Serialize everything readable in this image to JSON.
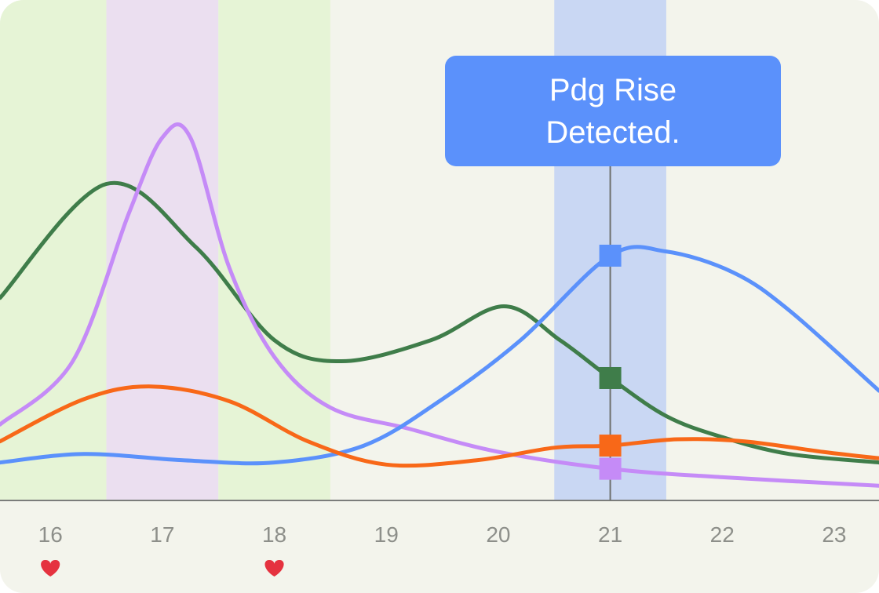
{
  "chart_data": {
    "type": "line",
    "x": [
      16,
      17,
      18,
      19,
      20,
      21,
      22,
      23
    ],
    "xlim": [
      15.55,
      23.4
    ],
    "ylim": [
      0,
      100
    ],
    "title": "",
    "xlabel": "",
    "ylabel": "",
    "grid": false,
    "legend": "none",
    "tick_labels": [
      "16",
      "17",
      "18",
      "19",
      "20",
      "21",
      "22",
      "23"
    ],
    "heart_markers": [
      16,
      18
    ],
    "shaded_bands": [
      {
        "from": 15.55,
        "to": 16.5,
        "color": "#e6f4d6"
      },
      {
        "from": 16.5,
        "to": 17.5,
        "color": "#ebdff0"
      },
      {
        "from": 17.5,
        "to": 18.5,
        "color": "#e6f4d6"
      },
      {
        "from": 20.5,
        "to": 21.5,
        "color": "#c9d7f3"
      }
    ],
    "marker_x": 21,
    "annotation": {
      "line1": "Pdg Rise",
      "line2": "Detected.",
      "x": 21
    },
    "series": [
      {
        "color": "#3f7d4a",
        "points": [
          [
            15.55,
            48
          ],
          [
            16.5,
            75
          ],
          [
            17.3,
            60
          ],
          [
            18.0,
            38
          ],
          [
            18.6,
            33
          ],
          [
            19.4,
            38
          ],
          [
            20.05,
            46
          ],
          [
            20.55,
            38
          ],
          [
            21,
            29
          ],
          [
            21.5,
            20
          ],
          [
            22.0,
            15
          ],
          [
            22.6,
            11
          ],
          [
            23.4,
            9
          ]
        ],
        "marker_value": 29
      },
      {
        "color": "#c58bf7",
        "points": [
          [
            15.55,
            18
          ],
          [
            16.2,
            33
          ],
          [
            16.7,
            68
          ],
          [
            17.0,
            86
          ],
          [
            17.25,
            86
          ],
          [
            17.6,
            55
          ],
          [
            18.0,
            34
          ],
          [
            18.5,
            22
          ],
          [
            19.2,
            17
          ],
          [
            20.0,
            11.5
          ],
          [
            21,
            7.5
          ],
          [
            22.0,
            5.5
          ],
          [
            23.4,
            3.5
          ]
        ],
        "marker_value": 7.5
      },
      {
        "color": "#5b91fb",
        "points": [
          [
            15.55,
            9
          ],
          [
            16.3,
            11
          ],
          [
            17.2,
            9.5
          ],
          [
            18.0,
            9
          ],
          [
            18.8,
            13
          ],
          [
            19.5,
            24
          ],
          [
            20.2,
            38
          ],
          [
            21,
            58
          ],
          [
            21.5,
            59
          ],
          [
            22.1,
            54
          ],
          [
            22.6,
            45
          ],
          [
            23.4,
            26
          ]
        ],
        "marker_value": 58
      },
      {
        "color": "#f86818",
        "points": [
          [
            15.55,
            14
          ],
          [
            16.3,
            24
          ],
          [
            16.9,
            27
          ],
          [
            17.6,
            23.5
          ],
          [
            18.3,
            14
          ],
          [
            19.0,
            8.5
          ],
          [
            19.8,
            9.5
          ],
          [
            20.5,
            12.5
          ],
          [
            21,
            13
          ],
          [
            21.6,
            14.5
          ],
          [
            22.2,
            14
          ],
          [
            22.9,
            11.5
          ],
          [
            23.4,
            10
          ]
        ],
        "marker_value": 13
      }
    ]
  }
}
